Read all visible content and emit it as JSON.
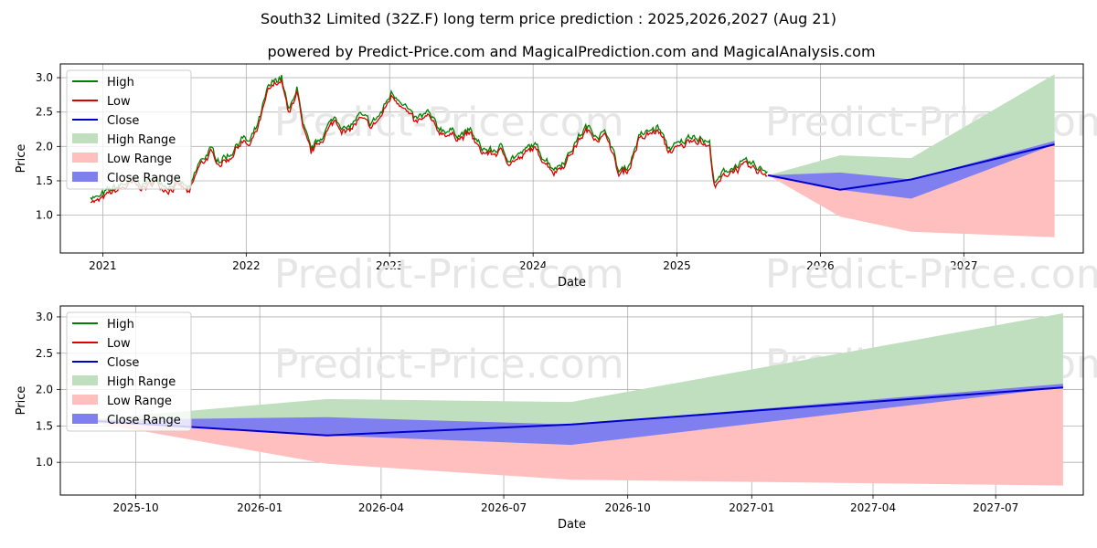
{
  "title": "South32 Limited (32Z.F) long term price prediction : 2025,2026,2027 (Aug 21)",
  "subtitle": "powered by Predict-Price.com and MagicalPrediction.com and MagicalAnalysis.com",
  "watermark": "Predict-Price.com",
  "colors": {
    "high": "#008000",
    "low": "#dd0000",
    "close": "#0000cc",
    "high_range": "#bfdfbf",
    "low_range": "#ffbfbf",
    "close_range": "#7f7ff0"
  },
  "chart_data": [
    {
      "type": "line",
      "panel": "top",
      "xlabel": "Date",
      "ylabel": "Price",
      "grid": true,
      "legend": "upper-left",
      "x_ticks": [
        "2021",
        "2022",
        "2023",
        "2024",
        "2025",
        "2026",
        "2027"
      ],
      "y_ticks": [
        "1.0",
        "1.5",
        "2.0",
        "2.5",
        "3.0"
      ],
      "xlim": [
        "2020-09-15",
        "2027-11-01"
      ],
      "ylim": [
        0.45,
        3.2
      ],
      "history_anchors": [
        [
          "2020-12-01",
          1.26
        ],
        [
          "2020-12-20",
          1.21
        ],
        [
          "2021-01-15",
          1.32
        ],
        [
          "2021-02-15",
          1.4
        ],
        [
          "2021-03-15",
          1.47
        ],
        [
          "2021-04-15",
          1.42
        ],
        [
          "2021-05-15",
          1.5
        ],
        [
          "2021-06-15",
          1.4
        ],
        [
          "2021-07-15",
          1.45
        ],
        [
          "2021-08-10",
          1.33
        ],
        [
          "2021-09-01",
          1.7
        ],
        [
          "2021-10-01",
          1.92
        ],
        [
          "2021-10-25",
          1.78
        ],
        [
          "2021-11-20",
          1.85
        ],
        [
          "2021-12-20",
          2.1
        ],
        [
          "2022-01-10",
          2.02
        ],
        [
          "2022-02-01",
          2.3
        ],
        [
          "2022-02-25",
          2.8
        ],
        [
          "2022-03-20",
          2.95
        ],
        [
          "2022-04-01",
          2.98
        ],
        [
          "2022-04-20",
          2.45
        ],
        [
          "2022-05-10",
          2.85
        ],
        [
          "2022-05-25",
          2.25
        ],
        [
          "2022-06-15",
          1.92
        ],
        [
          "2022-07-15",
          2.15
        ],
        [
          "2022-08-15",
          2.4
        ],
        [
          "2022-09-15",
          2.2
        ],
        [
          "2022-10-15",
          2.42
        ],
        [
          "2022-11-15",
          2.3
        ],
        [
          "2022-12-10",
          2.45
        ],
        [
          "2023-01-05",
          2.75
        ],
        [
          "2023-02-01",
          2.65
        ],
        [
          "2023-03-05",
          2.35
        ],
        [
          "2023-04-10",
          2.45
        ],
        [
          "2023-05-01",
          2.25
        ],
        [
          "2023-06-01",
          2.2
        ],
        [
          "2023-07-01",
          2.15
        ],
        [
          "2023-07-25",
          2.2
        ],
        [
          "2023-08-20",
          1.95
        ],
        [
          "2023-09-20",
          1.9
        ],
        [
          "2023-10-10",
          1.95
        ],
        [
          "2023-11-01",
          1.8
        ],
        [
          "2023-12-01",
          1.85
        ],
        [
          "2024-01-01",
          2.0
        ],
        [
          "2024-02-01",
          1.8
        ],
        [
          "2024-02-25",
          1.65
        ],
        [
          "2024-03-25",
          1.8
        ],
        [
          "2024-04-25",
          2.1
        ],
        [
          "2024-05-15",
          2.25
        ],
        [
          "2024-06-15",
          2.15
        ],
        [
          "2024-07-10",
          2.15
        ],
        [
          "2024-08-06",
          1.6
        ],
        [
          "2024-09-01",
          1.7
        ],
        [
          "2024-09-25",
          2.1
        ],
        [
          "2024-10-25",
          2.2
        ],
        [
          "2024-11-15",
          2.25
        ],
        [
          "2024-12-10",
          1.95
        ],
        [
          "2025-01-10",
          2.0
        ],
        [
          "2025-02-10",
          2.15
        ],
        [
          "2025-03-01",
          2.1
        ],
        [
          "2025-03-25",
          2.0
        ],
        [
          "2025-04-08",
          1.4
        ],
        [
          "2025-05-01",
          1.6
        ],
        [
          "2025-06-01",
          1.7
        ],
        [
          "2025-07-01",
          1.72
        ],
        [
          "2025-08-01",
          1.65
        ],
        [
          "2025-08-21",
          1.62
        ]
      ],
      "forecast": {
        "x": [
          "2025-08-21",
          "2026-02-20",
          "2026-08-20",
          "2027-08-20"
        ],
        "close": [
          1.58,
          1.37,
          1.52,
          2.03
        ],
        "high_range": {
          "upper": [
            1.58,
            1.87,
            1.83,
            3.05
          ],
          "lower": [
            1.58,
            1.37,
            1.52,
            2.03
          ]
        },
        "low_range": {
          "upper": [
            1.58,
            1.37,
            1.52,
            2.03
          ],
          "lower": [
            1.58,
            0.98,
            0.76,
            0.68
          ]
        },
        "close_range": {
          "upper": [
            1.58,
            1.62,
            1.52,
            2.08
          ],
          "lower": [
            1.58,
            1.37,
            1.24,
            2.03
          ]
        }
      },
      "series": [
        {
          "name": "High",
          "style": "line"
        },
        {
          "name": "Low",
          "style": "line"
        },
        {
          "name": "Close",
          "style": "line"
        },
        {
          "name": "High Range",
          "style": "band"
        },
        {
          "name": "Low Range",
          "style": "band"
        },
        {
          "name": "Close Range",
          "style": "band"
        }
      ]
    },
    {
      "type": "line",
      "panel": "bottom",
      "xlabel": "Date",
      "ylabel": "Price",
      "grid": true,
      "legend": "upper-left",
      "x_ticks": [
        "2025-10",
        "2026-01",
        "2026-04",
        "2026-07",
        "2026-10",
        "2027-01",
        "2027-04",
        "2027-07"
      ],
      "y_ticks": [
        "1.0",
        "1.5",
        "2.0",
        "2.5",
        "3.0"
      ],
      "xlim": [
        "2025-08-06",
        "2027-09-04"
      ],
      "ylim": [
        0.55,
        3.15
      ],
      "series": [
        {
          "name": "High",
          "style": "line"
        },
        {
          "name": "Low",
          "style": "line"
        },
        {
          "name": "Close",
          "style": "line"
        },
        {
          "name": "High Range",
          "style": "band"
        },
        {
          "name": "Low Range",
          "style": "band"
        },
        {
          "name": "Close Range",
          "style": "band"
        }
      ]
    }
  ]
}
